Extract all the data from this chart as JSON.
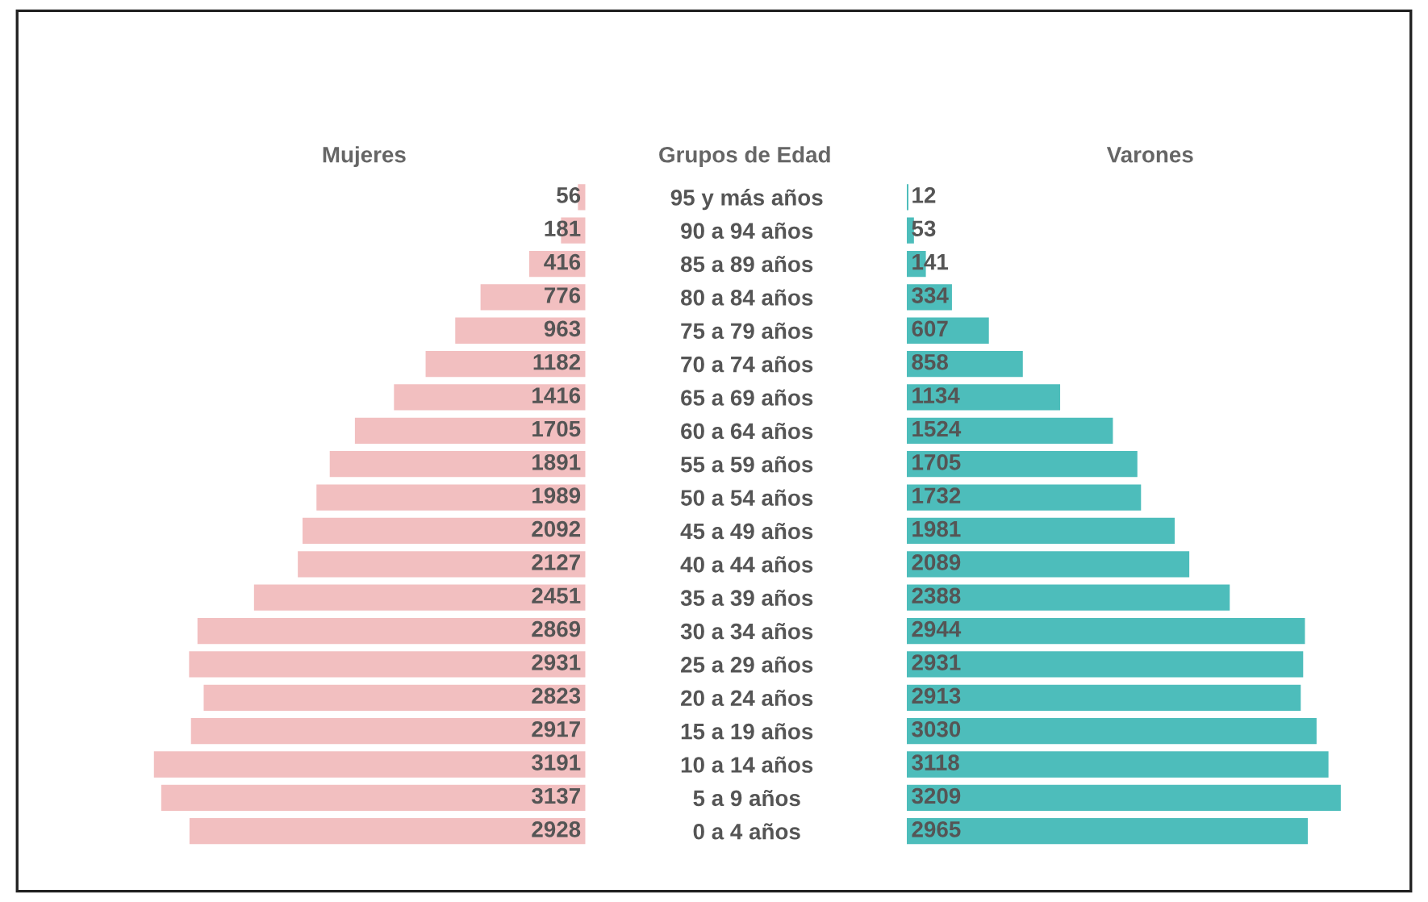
{
  "chart_data": [
    {
      "type": "bar",
      "orientation": "horizontal",
      "title": "Mujeres",
      "ylabel": "Grupos de Edad",
      "data_labels": true,
      "tick_labels": "y",
      "categories": [
        "95 y más años",
        "90 a 94 años",
        "85 a 89 años",
        "80 a 84 años",
        "75 a 79 años",
        "70 a 74 años",
        "65 a 69 años",
        "60 a 64 años",
        "55 a 59 años",
        "50 a 54 años",
        "45 a 49 años",
        "40 a 44 años",
        "35 a 39 años",
        "30 a 34 años",
        "25 a 29 años",
        "20 a 24 años",
        "15 a 19 años",
        "10 a 14 años",
        "5 a 9 años",
        "0 a 4 años"
      ],
      "series": [
        {
          "color": "#f2bfc0",
          "values": [
            56,
            181,
            416,
            776,
            963,
            1182,
            1416,
            1705,
            1891,
            1989,
            2092,
            2127,
            2451,
            2869,
            2931,
            2823,
            2917,
            3191,
            3137,
            2928
          ]
        }
      ]
    },
    {
      "type": "bar",
      "orientation": "horizontal",
      "title": "Varones",
      "data_labels": true,
      "tick_labels": false,
      "categories": [
        null,
        null,
        null,
        null,
        null,
        null,
        null,
        null,
        null,
        null,
        null,
        null,
        null,
        null,
        null,
        null,
        null,
        null,
        null,
        null
      ],
      "series": [
        {
          "color": "#4dbdbb",
          "values": [
            12,
            53,
            141,
            334,
            607,
            858,
            1134,
            1524,
            1705,
            1732,
            1981,
            2089,
            2388,
            2944,
            2931,
            2913,
            3030,
            3118,
            3209,
            2965
          ]
        }
      ]
    }
  ]
}
